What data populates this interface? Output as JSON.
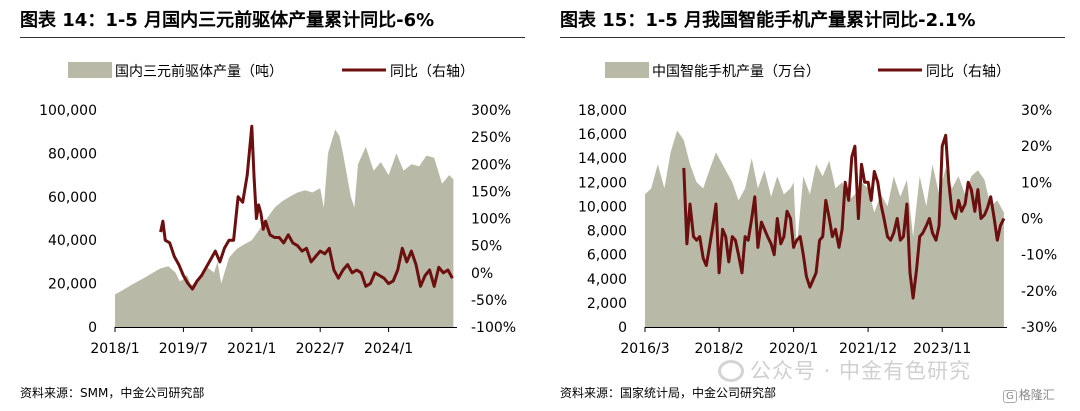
{
  "chart_data": [
    {
      "type": "area+line",
      "title": "图表 14：1-5 月国内三元前驱体产量累计同比-6%",
      "source": "资料来源：SMM，中金公司研究部",
      "legend": {
        "position": "top",
        "area_label": "国内三元前驱体产量（吨）",
        "line_label": "同比（右轴）"
      },
      "x_range": [
        2018.0,
        2025.5
      ],
      "x_ticks": [
        {
          "x": 2018.0,
          "label": "2018/1"
        },
        {
          "x": 2019.5,
          "label": "2019/7"
        },
        {
          "x": 2021.0,
          "label": "2021/1"
        },
        {
          "x": 2022.5,
          "label": "2022/7"
        },
        {
          "x": 2024.0,
          "label": "2024/1"
        }
      ],
      "y_left": {
        "min": 0,
        "max": 100000,
        "ticks": [
          "0",
          "20,000",
          "40,000",
          "60,000",
          "80,000",
          "100,000"
        ]
      },
      "y_right": {
        "min": -100,
        "max": 300,
        "ticks": [
          "-100%",
          "-50%",
          "0%",
          "50%",
          "100%",
          "150%",
          "200%",
          "250%",
          "300%"
        ]
      },
      "grid": false,
      "colors": {
        "area": "#b9b9a8",
        "line": "#6b0f0f"
      },
      "area_series": {
        "name": "国内三元前驱体产量（吨）",
        "x": [
          2018.0,
          2018.17,
          2018.33,
          2018.5,
          2018.67,
          2018.83,
          2019.0,
          2019.17,
          2019.33,
          2019.42,
          2019.5,
          2019.58,
          2019.67,
          2019.83,
          2020.0,
          2020.17,
          2020.25,
          2020.33,
          2020.5,
          2020.67,
          2020.83,
          2021.0,
          2021.17,
          2021.33,
          2021.5,
          2021.67,
          2021.83,
          2022.0,
          2022.17,
          2022.33,
          2022.5,
          2022.58,
          2022.67,
          2022.83,
          2022.92,
          2023.0,
          2023.17,
          2023.25,
          2023.33,
          2023.5,
          2023.58,
          2023.67,
          2023.83,
          2024.0,
          2024.17,
          2024.33,
          2024.5,
          2024.67,
          2024.83,
          2025.0,
          2025.17,
          2025.33,
          2025.42
        ],
        "values": [
          15000,
          17000,
          19000,
          21000,
          23000,
          25000,
          27000,
          28000,
          25000,
          21000,
          22000,
          24000,
          19000,
          22000,
          28000,
          25000,
          30000,
          20000,
          32000,
          36000,
          38000,
          40000,
          45000,
          50000,
          55000,
          58000,
          60000,
          62000,
          63000,
          62000,
          64000,
          55000,
          80000,
          91000,
          88000,
          80000,
          60000,
          55000,
          75000,
          83000,
          78000,
          72000,
          76000,
          70000,
          80000,
          72000,
          75000,
          74000,
          79000,
          78000,
          66000,
          70000,
          68000
        ]
      },
      "line_series": {
        "name": "同比（右轴）",
        "x": [
          2019.0,
          2019.05,
          2019.1,
          2019.2,
          2019.3,
          2019.4,
          2019.5,
          2019.6,
          2019.7,
          2019.8,
          2019.9,
          2020.0,
          2020.1,
          2020.2,
          2020.3,
          2020.4,
          2020.5,
          2020.6,
          2020.7,
          2020.8,
          2020.9,
          2021.0,
          2021.05,
          2021.1,
          2021.15,
          2021.2,
          2021.25,
          2021.3,
          2021.4,
          2021.5,
          2021.6,
          2021.7,
          2021.8,
          2021.9,
          2022.0,
          2022.1,
          2022.2,
          2022.3,
          2022.4,
          2022.5,
          2022.6,
          2022.7,
          2022.8,
          2022.9,
          2023.0,
          2023.1,
          2023.2,
          2023.3,
          2023.4,
          2023.5,
          2023.6,
          2023.7,
          2023.8,
          2023.9,
          2024.0,
          2024.1,
          2024.2,
          2024.3,
          2024.4,
          2024.5,
          2024.6,
          2024.7,
          2024.8,
          2024.9,
          2025.0,
          2025.1,
          2025.2,
          2025.3,
          2025.4
        ],
        "values": [
          75,
          95,
          60,
          55,
          30,
          15,
          -5,
          -20,
          -30,
          -15,
          -5,
          10,
          25,
          40,
          20,
          45,
          60,
          60,
          140,
          130,
          180,
          270,
          175,
          100,
          125,
          110,
          80,
          95,
          70,
          65,
          65,
          55,
          70,
          55,
          50,
          40,
          45,
          20,
          30,
          40,
          35,
          45,
          5,
          -10,
          5,
          15,
          0,
          5,
          0,
          -25,
          -20,
          0,
          -5,
          -10,
          -20,
          -15,
          5,
          45,
          20,
          40,
          15,
          -25,
          -5,
          5,
          -25,
          10,
          0,
          5,
          -10
        ]
      }
    },
    {
      "type": "area+line",
      "title": "图表 15：1-5 月我国智能手机产量累计同比-2.1%",
      "source": "资料来源：国家统计局，中金公司研究部",
      "legend": {
        "position": "top",
        "area_label": "中国智能手机产量（万台）",
        "line_label": "同比（右轴）"
      },
      "x_range": [
        2016.17,
        2025.5
      ],
      "x_ticks": [
        {
          "x": 2016.17,
          "label": "2016/3"
        },
        {
          "x": 2018.08,
          "label": "2018/2"
        },
        {
          "x": 2020.0,
          "label": "2020/1"
        },
        {
          "x": 2021.92,
          "label": "2021/12"
        },
        {
          "x": 2023.83,
          "label": "2023/11"
        }
      ],
      "y_left": {
        "min": 0,
        "max": 18000,
        "ticks": [
          "0",
          "2,000",
          "4,000",
          "6,000",
          "8,000",
          "10,000",
          "12,000",
          "14,000",
          "16,000",
          "18,000"
        ]
      },
      "y_right": {
        "min": -30,
        "max": 30,
        "ticks": [
          "-30%",
          "-20%",
          "-10%",
          "0%",
          "10%",
          "20%",
          "30%"
        ]
      },
      "grid": false,
      "colors": {
        "area": "#b9b9a8",
        "line": "#6b0f0f"
      },
      "area_series": {
        "name": "中国智能手机产量（万台）",
        "x": [
          2016.17,
          2016.33,
          2016.5,
          2016.67,
          2016.83,
          2017.0,
          2017.17,
          2017.33,
          2017.5,
          2017.67,
          2017.83,
          2018.0,
          2018.08,
          2018.25,
          2018.42,
          2018.58,
          2018.75,
          2018.92,
          2019.08,
          2019.25,
          2019.42,
          2019.58,
          2019.75,
          2019.92,
          2020.0,
          2020.08,
          2020.25,
          2020.42,
          2020.58,
          2020.75,
          2020.92,
          2021.08,
          2021.25,
          2021.42,
          2021.58,
          2021.75,
          2021.92,
          2022.08,
          2022.25,
          2022.42,
          2022.58,
          2022.75,
          2022.92,
          2023.08,
          2023.25,
          2023.42,
          2023.58,
          2023.75,
          2023.92,
          2024.08,
          2024.25,
          2024.42,
          2024.58,
          2024.75,
          2024.92,
          2025.08,
          2025.25,
          2025.42
        ],
        "values": [
          11000,
          11500,
          13500,
          11500,
          14500,
          16300,
          15500,
          13500,
          12000,
          11500,
          13000,
          14500,
          14000,
          13000,
          12000,
          10500,
          11500,
          14000,
          11500,
          13000,
          10800,
          12500,
          11000,
          11500,
          12000,
          6500,
          12500,
          11000,
          13500,
          12500,
          13800,
          11500,
          12000,
          10500,
          11000,
          12000,
          11500,
          9500,
          11000,
          10000,
          12500,
          10800,
          12200,
          7500,
          12500,
          10000,
          13500,
          11000,
          13200,
          11500,
          12500,
          11000,
          12500,
          13000,
          12200,
          10000,
          10500,
          9500
        ]
      },
      "line_series": {
        "name": "同比（右轴）",
        "x": [
          2017.17,
          2017.25,
          2017.33,
          2017.42,
          2017.5,
          2017.58,
          2017.67,
          2017.75,
          2017.83,
          2017.92,
          2018.0,
          2018.08,
          2018.17,
          2018.25,
          2018.33,
          2018.42,
          2018.5,
          2018.58,
          2018.67,
          2018.75,
          2018.83,
          2018.92,
          2019.0,
          2019.08,
          2019.17,
          2019.25,
          2019.33,
          2019.42,
          2019.5,
          2019.58,
          2019.67,
          2019.75,
          2019.83,
          2019.92,
          2020.0,
          2020.08,
          2020.17,
          2020.25,
          2020.33,
          2020.42,
          2020.5,
          2020.58,
          2020.67,
          2020.75,
          2020.83,
          2020.92,
          2021.0,
          2021.08,
          2021.17,
          2021.25,
          2021.33,
          2021.42,
          2021.5,
          2021.58,
          2021.67,
          2021.75,
          2021.83,
          2021.92,
          2022.0,
          2022.08,
          2022.17,
          2022.25,
          2022.33,
          2022.42,
          2022.5,
          2022.58,
          2022.67,
          2022.75,
          2022.83,
          2022.92,
          2023.0,
          2023.08,
          2023.17,
          2023.25,
          2023.33,
          2023.42,
          2023.5,
          2023.58,
          2023.67,
          2023.75,
          2023.83,
          2023.92,
          2024.0,
          2024.08,
          2024.17,
          2024.25,
          2024.33,
          2024.42,
          2024.5,
          2024.58,
          2024.67,
          2024.75,
          2024.83,
          2024.92,
          2025.0,
          2025.08,
          2025.17,
          2025.25,
          2025.33,
          2025.42
        ],
        "values": [
          14,
          -7,
          4,
          -5,
          -6,
          -5,
          -11,
          -13,
          -8,
          -2,
          4,
          -15,
          -3,
          -5,
          -12,
          -5,
          -6,
          -10,
          -15,
          -5,
          -6,
          0,
          6,
          -8,
          -1,
          -3,
          -5,
          -7,
          -10,
          0,
          -7,
          -5,
          2,
          0,
          -8,
          -6,
          -5,
          -10,
          -16,
          -19,
          -17,
          -15,
          -6,
          -5,
          5,
          0,
          -5,
          -3,
          -8,
          -3,
          10,
          5,
          17,
          20,
          0,
          15,
          10,
          10,
          5,
          13,
          10,
          4,
          0,
          -5,
          -6,
          -4,
          0,
          -6,
          -5,
          4,
          -15,
          -22,
          -14,
          -5,
          -4,
          -2,
          0,
          -4,
          -6,
          -2,
          20,
          23,
          10,
          2,
          0,
          5,
          2,
          4,
          10,
          8,
          2,
          8,
          0,
          1,
          3,
          6,
          0,
          -6,
          -2,
          0
        ]
      }
    }
  ],
  "footer": {
    "watermark": "公众号 · 中金有色研究",
    "badge_icon": "G",
    "badge_text": "格隆汇"
  }
}
